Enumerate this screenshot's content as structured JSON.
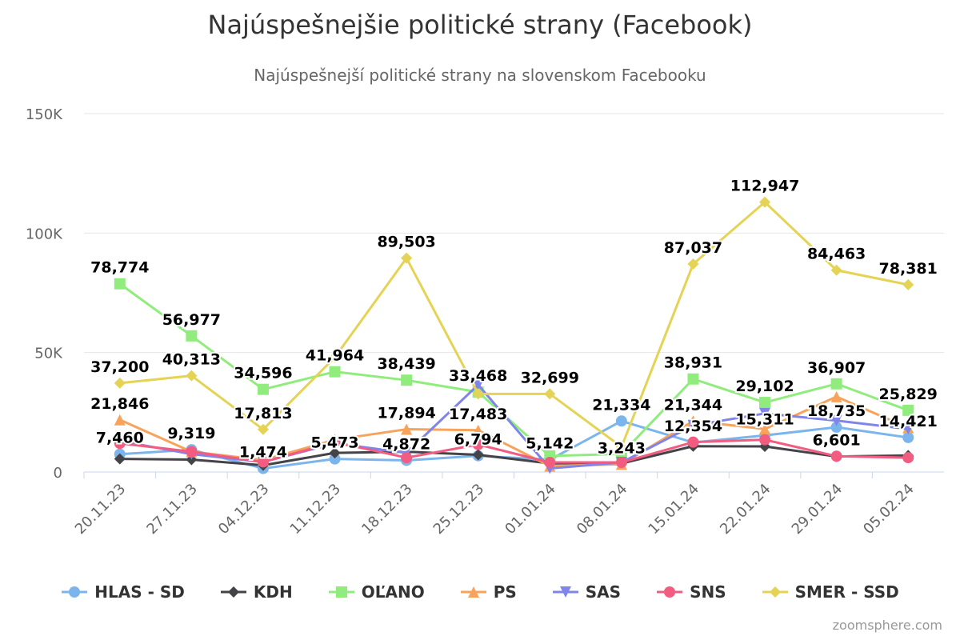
{
  "chart_data": {
    "type": "line",
    "title": "Najúspešnejšie politické strany (Facebook)",
    "subtitle": "Najúspešnejší politické strany na slovenskom Facebooku",
    "categories": [
      "20.11.23",
      "27.11.23",
      "04.12.23",
      "11.12.23",
      "18.12.23",
      "25.12.23",
      "01.01.24",
      "08.01.24",
      "15.01.24",
      "22.01.24",
      "29.01.24",
      "05.02.24"
    ],
    "ylim": [
      0,
      150000
    ],
    "yticks": [
      0,
      50000,
      100000,
      150000
    ],
    "ytick_labels": [
      "0",
      "50K",
      "100K",
      "150K"
    ],
    "grid": true,
    "legend_position": "bottom",
    "series": [
      {
        "name": "HLAS - SD",
        "color": "#7cb5ec",
        "marker": "circle",
        "values": [
          7460,
          9319,
          1474,
          5473,
          4872,
          6794,
          5142,
          21334,
          12354,
          15311,
          18735,
          14421
        ],
        "labels": [
          "7,460",
          "9,319",
          "1,474",
          "5,473",
          "4,872",
          "6,794",
          "5,142",
          "21,334",
          "12,354",
          "15,311",
          "18,735",
          "14,421"
        ]
      },
      {
        "name": "KDH",
        "color": "#434348",
        "marker": "diamond",
        "values": [
          5500,
          5200,
          2800,
          8000,
          8500,
          7200,
          3600,
          3600,
          10800,
          10700,
          6500,
          6900
        ],
        "labels": [
          "",
          "",
          "",
          "",
          "",
          "",
          "",
          "",
          "",
          "",
          "",
          ""
        ]
      },
      {
        "name": "OĽANO",
        "color": "#90ed7d",
        "marker": "square",
        "values": [
          78774,
          56977,
          34596,
          41964,
          38439,
          33468,
          6700,
          7600,
          38931,
          29102,
          36907,
          25829
        ],
        "labels": [
          "78,774",
          "56,977",
          "34,596",
          "41,964",
          "38,439",
          "33,468",
          "",
          "",
          "38,931",
          "29,102",
          "36,907",
          "25,829"
        ]
      },
      {
        "name": "PS",
        "color": "#f7a35c",
        "marker": "triangle",
        "values": [
          21846,
          8500,
          5000,
          13500,
          17894,
          17483,
          2500,
          3243,
          21344,
          18000,
          31500,
          18500
        ],
        "labels": [
          "21,846",
          "",
          "",
          "",
          "17,894",
          "17,483",
          "",
          "3,243",
          "21,344",
          "",
          "",
          ""
        ]
      },
      {
        "name": "SAS",
        "color": "#8085e9",
        "marker": "triangle-down",
        "values": [
          13000,
          7500,
          4200,
          12000,
          8000,
          36500,
          1500,
          4000,
          19500,
          24500,
          21500,
          18000
        ],
        "labels": [
          "",
          "",
          "",
          "",
          "",
          "",
          "",
          "",
          "",
          "",
          "",
          ""
        ]
      },
      {
        "name": "SNS",
        "color": "#f15c80",
        "marker": "circle",
        "values": [
          12000,
          8500,
          4200,
          12500,
          6000,
          11500,
          4000,
          4000,
          12500,
          13500,
          6601,
          6000
        ],
        "labels": [
          "",
          "",
          "",
          "",
          "",
          "",
          "",
          "",
          "",
          "",
          "6,601",
          ""
        ]
      },
      {
        "name": "SMER - SSD",
        "color": "#e4d354",
        "marker": "diamond",
        "values": [
          37200,
          40313,
          17813,
          48000,
          89503,
          32699,
          32699,
          10500,
          87037,
          112947,
          84463,
          78381
        ],
        "labels": [
          "37,200",
          "40,313",
          "17,813",
          "",
          "89,503",
          "",
          "32,699",
          "",
          "87,037",
          "112,947",
          "84,463",
          "78,381"
        ]
      }
    ]
  },
  "credit": "zoomsphere.com"
}
